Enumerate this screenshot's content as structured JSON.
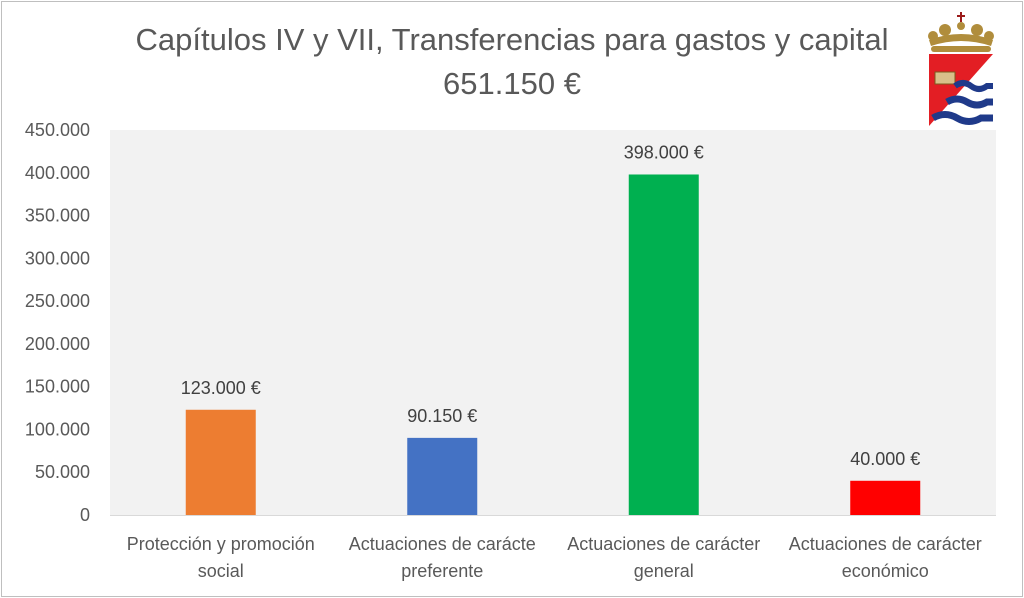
{
  "chart_data": {
    "type": "bar",
    "title": "Capítulos IV y VII, Transferencias para gastos y capital",
    "subtitle": "651.150 €",
    "categories": [
      [
        "Protección y promoción",
        "social"
      ],
      [
        "Actuaciones de carácte",
        "preferente"
      ],
      [
        "Actuaciones de carácter",
        "general"
      ],
      [
        "Actuaciones de carácter",
        "económico"
      ]
    ],
    "values": [
      123000,
      90150,
      398000,
      40000
    ],
    "data_labels": [
      "123.000 €",
      "90.150 €",
      "398.000 €",
      "40.000 €"
    ],
    "colors": [
      "#ed7d31",
      "#4472c4",
      "#00b050",
      "#ff0000"
    ],
    "yticks": [
      "0",
      "50.000",
      "100.000",
      "150.000",
      "200.000",
      "250.000",
      "300.000",
      "350.000",
      "400.000",
      "450.000"
    ],
    "ylim": [
      0,
      450000
    ],
    "ystep": 50000,
    "grid": false,
    "plot_background": "#f2f2f2",
    "legend": "none"
  },
  "logo": {
    "icon": "municipal-coat-of-arms-icon",
    "colors": {
      "crown": "#b08d3c",
      "shield_red": "#e31e24",
      "waves": "#1f3a8a"
    }
  }
}
